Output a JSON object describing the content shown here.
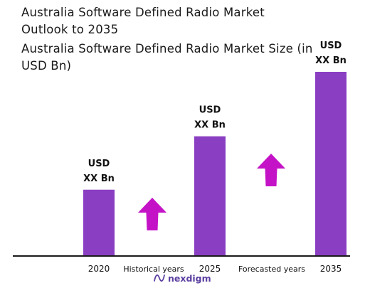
{
  "header": {
    "title": "Australia Software Defined Radio Market Outlook to 2035",
    "subtitle": "Australia Software Defined Radio Market Size (in USD Bn)"
  },
  "colors": {
    "bar": "#8A3FC2",
    "arrow": "#C413C7",
    "axis": "#1a1a1a",
    "brand": "#5b3fa0"
  },
  "chart_data": {
    "type": "bar",
    "categories": [
      "2020",
      "2025",
      "2035"
    ],
    "values": [
      0.36,
      0.65,
      1.0
    ],
    "data_labels": [
      [
        "USD",
        "XX Bn"
      ],
      [
        "USD",
        "XX Bn"
      ],
      [
        "USD",
        "XX Bn"
      ]
    ],
    "ylim": [
      0,
      1.0
    ],
    "grid": false,
    "legend": "none",
    "period_labels": [
      "Historical years",
      "Forecasted years"
    ],
    "trend_arrows": [
      "up",
      "up"
    ]
  },
  "footer": {
    "brand": "nexdigm",
    "logo_icon": "nexdigm-wave-icon"
  }
}
